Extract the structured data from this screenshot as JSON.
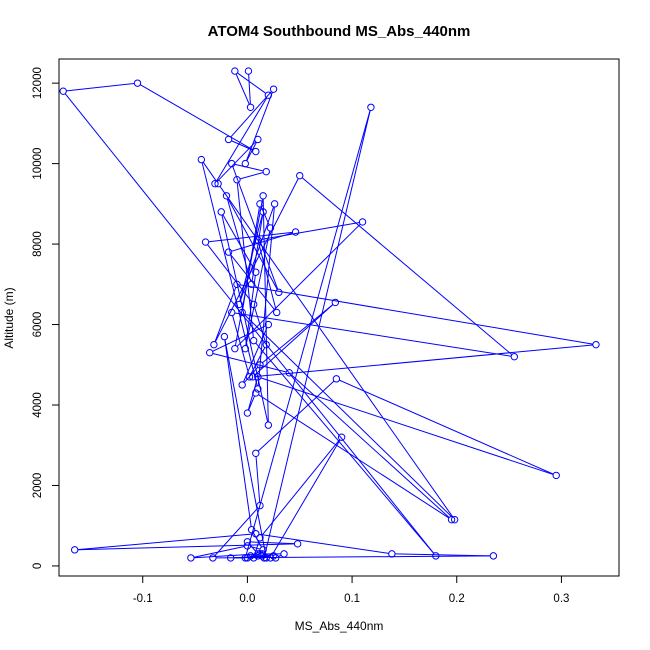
{
  "chart_data": {
    "type": "line",
    "title": "ATOM4 Southbound MS_Abs_440nm",
    "xlabel": "MS_Abs_440nm",
    "ylabel": "Altitude (m)",
    "xlim": [
      -0.18,
      0.355
    ],
    "ylim": [
      -250,
      12600
    ],
    "xticks": [
      -0.1,
      0.0,
      0.1,
      0.2,
      0.3
    ],
    "xtick_labels": [
      "-0.1",
      "0.0",
      "0.1",
      "0.2",
      "0.3"
    ],
    "yticks": [
      0,
      2000,
      4000,
      6000,
      8000,
      10000,
      12000
    ],
    "ytick_labels": [
      "0",
      "2000",
      "4000",
      "6000",
      "8000",
      "10000",
      "12000"
    ],
    "grid": false,
    "markers": "open-circle",
    "color": "#0000ff",
    "series": [
      {
        "x": [
          0.001,
          0.003,
          -0.012,
          0.02,
          -0.031,
          0.01,
          -0.002,
          0.025,
          -0.018,
          0.008,
          -0.105,
          -0.176,
          0.18,
          0.006,
          -0.01,
          0.018,
          -0.015,
          0.03,
          -0.02,
          0.004,
          0.015,
          -0.008,
          0.026,
          0.01,
          -0.044,
          -0.028,
          0.198,
          -0.005,
          0.012,
          0.022,
          -0.002,
          0.008,
          -0.025,
          0.02,
          0.015,
          -0.012,
          0.11,
          0.01,
          0.028,
          -0.018,
          0.046,
          -0.04,
          0.006,
          0.018,
          0.002,
          -0.015,
          0.255,
          0.05,
          -0.032,
          -0.01,
          0.333,
          0.005,
          0.084,
          0.012,
          -0.005,
          0.02,
          -0.036,
          0.04,
          0.195,
          0.008,
          0.0,
          0.01,
          0.295,
          0.085,
          0.008,
          0.012,
          -0.033,
          0.235,
          0.138,
          0.008,
          -0.165,
          0.048,
          0.0,
          0.01,
          -0.054,
          0.0,
          0.015,
          0.004,
          -0.022,
          0.018,
          0.003,
          0.014,
          0.006,
          0.012,
          0.09,
          0.022,
          0.01,
          0.014,
          0.016,
          0.118,
          -0.002,
          0.025,
          -0.016,
          0.0,
          0.012,
          0.035,
          0.027
        ],
        "y": [
          12300,
          11400,
          12300,
          11700,
          9500,
          10600,
          10000,
          11850,
          10600,
          10300,
          12000,
          11800,
          250,
          5600,
          9600,
          9800,
          10000,
          6800,
          9200,
          7000,
          8800,
          6500,
          9000,
          4400,
          10100,
          9500,
          1150,
          6300,
          9000,
          8400,
          5400,
          7300,
          8800,
          3500,
          9200,
          5400,
          8550,
          8100,
          6300,
          7800,
          8300,
          8050,
          6500,
          5500,
          4700,
          6300,
          5200,
          9700,
          5500,
          7000,
          5500,
          4700,
          6550,
          5000,
          4500,
          6000,
          5300,
          4800,
          1150,
          4300,
          3800,
          4700,
          2250,
          4650,
          2800,
          1500,
          200,
          250,
          300,
          800,
          400,
          550,
          600,
          300,
          200,
          500,
          400,
          900,
          5700,
          200,
          250,
          300,
          200,
          700,
          3200,
          200,
          250,
          250,
          200,
          11400,
          200,
          250,
          200,
          200,
          300,
          300,
          200
        ]
      }
    ]
  }
}
